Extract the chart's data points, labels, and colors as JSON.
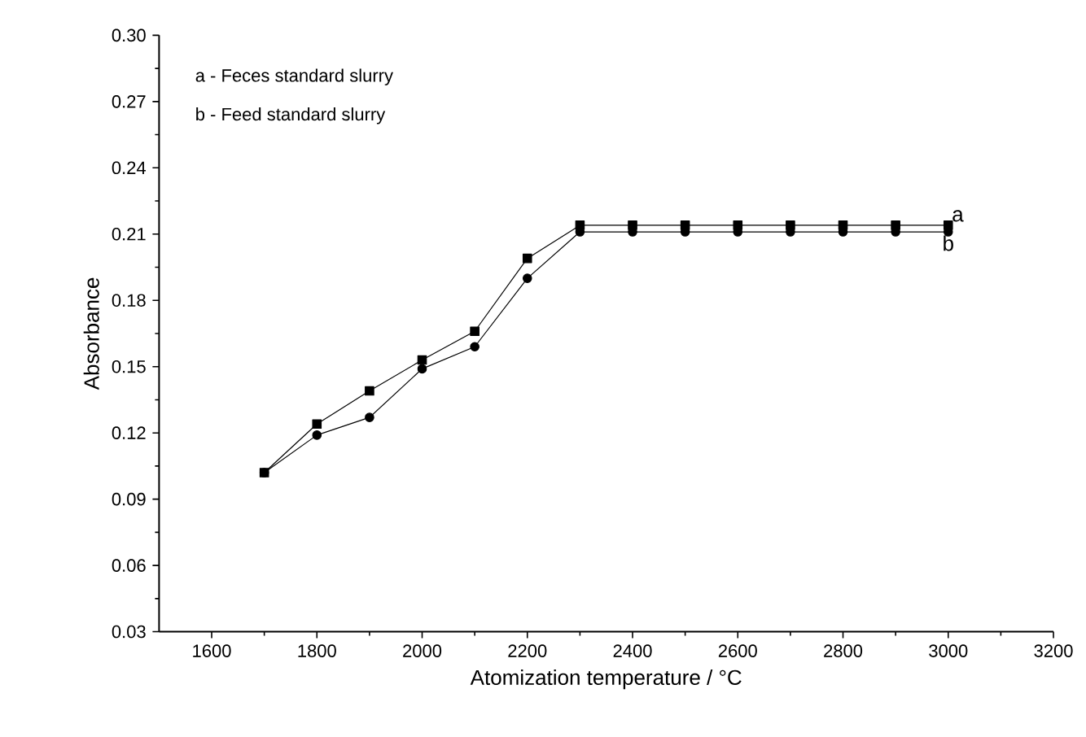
{
  "chart_data": {
    "type": "line",
    "xlabel": "Atomization temperature / °C",
    "ylabel": "Absorbance",
    "x": [
      1700,
      1800,
      1900,
      2000,
      2100,
      2200,
      2300,
      2400,
      2500,
      2600,
      2700,
      2800,
      2900,
      3000
    ],
    "series": [
      {
        "name": "a",
        "color": "#000000",
        "marker": "square",
        "values": [
          0.102,
          0.124,
          0.139,
          0.153,
          0.166,
          0.199,
          0.214,
          0.214,
          0.214,
          0.214,
          0.214,
          0.214,
          0.214,
          0.214
        ]
      },
      {
        "name": "b",
        "color": "#000000",
        "marker": "circle",
        "values": [
          0.102,
          0.119,
          0.127,
          0.149,
          0.159,
          0.19,
          0.211,
          0.211,
          0.211,
          0.211,
          0.211,
          0.211,
          0.211,
          0.211
        ]
      }
    ],
    "annotations": [
      "a - Feces standard slurry",
      "b - Feed standard slurry"
    ],
    "xlim": [
      1500,
      3200
    ],
    "xticks": [
      1600,
      1800,
      2000,
      2200,
      2400,
      2600,
      2800,
      3000,
      3200
    ],
    "ylim": [
      0.03,
      0.3
    ],
    "yticks": [
      0.03,
      0.06,
      0.09,
      0.12,
      0.15,
      0.18,
      0.21,
      0.24,
      0.27,
      {
        "value": 0.3,
        "label": "0.30"
      }
    ],
    "grid": false,
    "line_style": "solid"
  }
}
